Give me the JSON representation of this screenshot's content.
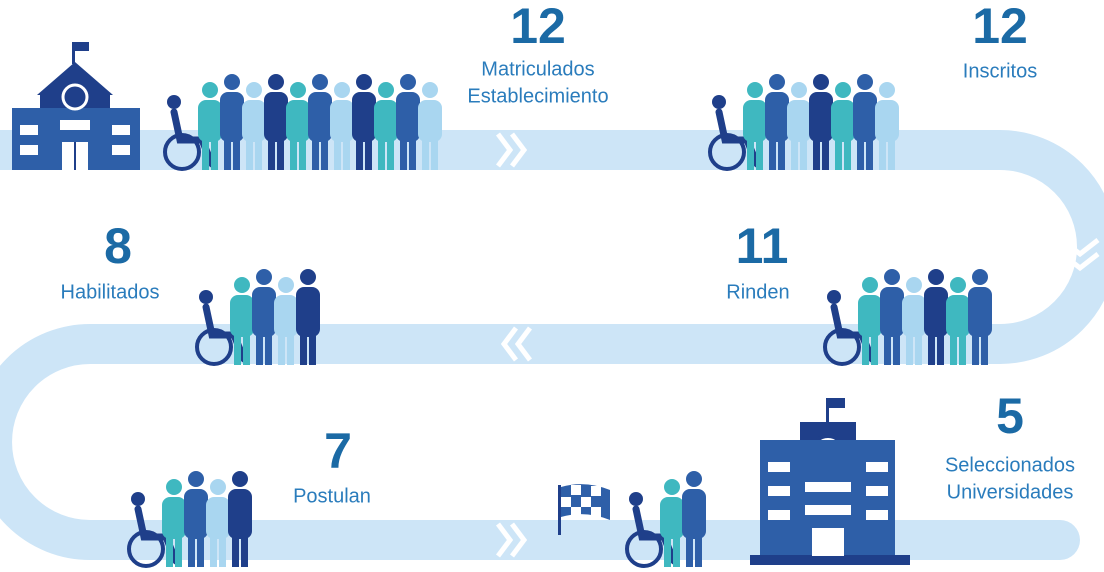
{
  "stages": [
    {
      "value": "12",
      "label": [
        "Matriculados",
        "Establecimiento"
      ]
    },
    {
      "value": "12",
      "label": [
        "Inscritos"
      ]
    },
    {
      "value": "11",
      "label": [
        "Rinden"
      ]
    },
    {
      "value": "8",
      "label": [
        "Habilitados"
      ]
    },
    {
      "value": "7",
      "label": [
        "Postulan"
      ]
    },
    {
      "value": "5",
      "label": [
        "Seleccionados",
        "Universidades"
      ]
    }
  ]
}
